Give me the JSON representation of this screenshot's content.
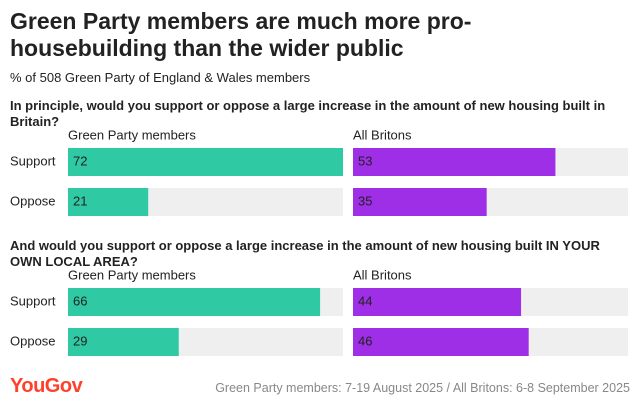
{
  "header": {
    "title": "Green Party members are much more pro-housebuilding than the wider public",
    "subtitle": "% of 508 Green Party of England & Wales members"
  },
  "chart_data": [
    {
      "type": "bar",
      "title": "In principle, would you support or oppose a large increase in the amount of new housing built in Britain?",
      "categories": [
        "Support",
        "Oppose"
      ],
      "xlim": [
        0,
        72
      ],
      "series": [
        {
          "name": "Green Party members",
          "color": "#2fc9a4",
          "values": [
            72,
            21
          ]
        },
        {
          "name": "All Britons",
          "color": "#9e2fe6",
          "values": [
            53,
            35
          ]
        }
      ]
    },
    {
      "type": "bar",
      "title": "And would you support or oppose a large increase in the amount of new housing built IN YOUR OWN LOCAL AREA?",
      "categories": [
        "Support",
        "Oppose"
      ],
      "xlim": [
        0,
        72
      ],
      "series": [
        {
          "name": "Green Party members",
          "color": "#2fc9a4",
          "values": [
            66,
            29
          ]
        },
        {
          "name": "All Britons",
          "color": "#9e2fe6",
          "values": [
            44,
            46
          ]
        }
      ]
    }
  ],
  "footer": {
    "logo": "YouGov",
    "source": "Green Party members: 7-19 August 2025 / All Britons: 6-8 September 2025"
  }
}
